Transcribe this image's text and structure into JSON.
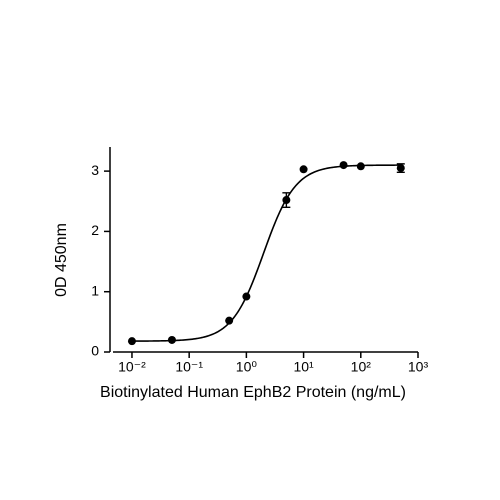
{
  "chart_data": {
    "type": "scatter",
    "xlabel": "Biotinylated Human EphB2 Protein (ng/mL)",
    "ylabel": "0D 450nm",
    "xscale": "log",
    "x": [
      0.01,
      0.05,
      0.5,
      1,
      5,
      10,
      50,
      100,
      500
    ],
    "series": [
      {
        "color": "#000000",
        "values": [
          0.18,
          0.2,
          0.52,
          0.92,
          2.52,
          3.03,
          3.1,
          3.08,
          3.05
        ],
        "errors": [
          null,
          null,
          null,
          null,
          0.12,
          null,
          null,
          null,
          0.07
        ]
      }
    ],
    "curve": {
      "bottom": 0.18,
      "top": 3.1,
      "ec50": 2,
      "hill": 1.56
    },
    "xlim": [
      0.004,
      1000
    ],
    "xticks": [
      {
        "value": 0.01,
        "label": "10⁻²"
      },
      {
        "value": 0.1,
        "label": "10⁻¹"
      },
      {
        "value": 1,
        "label": "10⁰"
      },
      {
        "value": 10,
        "label": "10¹"
      },
      {
        "value": 100,
        "label": "10²"
      },
      {
        "value": 1000,
        "label": "10³"
      }
    ],
    "ylim": [
      0,
      3.4
    ],
    "yticks": [
      0,
      1,
      2,
      3
    ]
  }
}
